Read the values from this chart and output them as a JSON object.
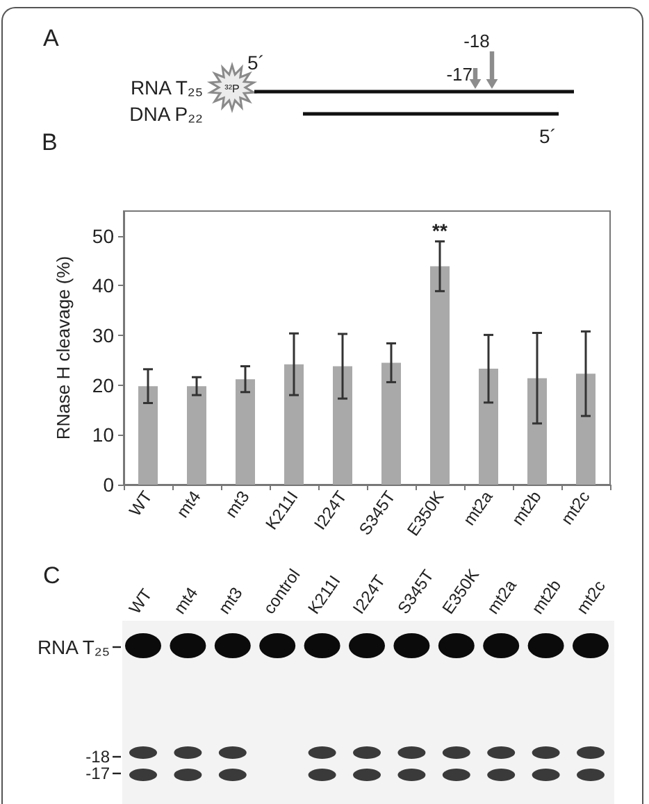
{
  "chart_data": [
    {
      "type": "other",
      "title": "A",
      "annotations": [
        "RNA T₂₅",
        "DNA P₂₂",
        "³²P",
        "5´",
        "5´",
        "-18",
        "-17"
      ]
    },
    {
      "type": "bar",
      "title": "B",
      "ylabel": "RNase H cleavage (%)",
      "categories": [
        "WT",
        "mt4",
        "mt3",
        "K211I",
        "I224T",
        "S345T",
        "E350K",
        "mt2a",
        "mt2b",
        "mt2c"
      ],
      "values": [
        19.8,
        19.8,
        21.2,
        24.2,
        23.8,
        24.5,
        43.9,
        23.3,
        21.4,
        22.3
      ],
      "errors": [
        3.4,
        1.8,
        2.6,
        6.2,
        6.5,
        3.9,
        5.0,
        6.8,
        9.1,
        8.5
      ],
      "color": "#a9a9a9",
      "ylim": [
        0,
        55
      ],
      "yticks": [
        0,
        10,
        20,
        30,
        40,
        50
      ],
      "annotations": [
        "**"
      ]
    },
    {
      "type": "other",
      "title": "C",
      "categories": [
        "WT",
        "mt4",
        "mt3",
        "control",
        "K211I",
        "I224T",
        "S345T",
        "E350K",
        "mt2a",
        "mt2b",
        "mt2c"
      ],
      "annotations": [
        "RNA T₂₅",
        "-18",
        "-17"
      ]
    }
  ]
}
